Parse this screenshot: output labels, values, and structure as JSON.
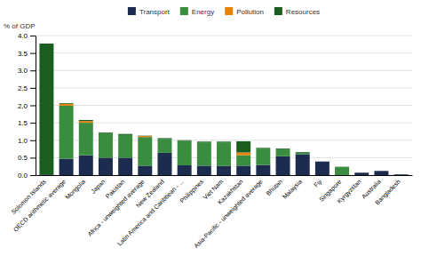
{
  "chart_data": {
    "type": "bar",
    "stacked": true,
    "y_label": "% of GDP",
    "categories": [
      "Solomon Islands",
      "OECD arithmetic average",
      "Mongolia",
      "Japan",
      "Pakistan",
      "Africa - unweighted average",
      "New Zealand",
      "Latin America and Caribbean - ...",
      "Philippines",
      "Viet Nam",
      "Kazakhstan",
      "Asia-Pacific - unweighted average",
      "Bhutan",
      "Malaysia",
      "Fiji",
      "Singapore",
      "Kyrgyzstan",
      "Australia",
      "Bangladesh"
    ],
    "series": [
      {
        "name": "Transport",
        "color": "#1c2c4e",
        "values": [
          0.02,
          0.47,
          0.57,
          0.5,
          0.5,
          0.27,
          0.64,
          0.28,
          0.27,
          0.26,
          0.27,
          0.29,
          0.54,
          0.6,
          0.39,
          0.0,
          0.07,
          0.12,
          0.02
        ]
      },
      {
        "name": "Energy",
        "color": "#3a8c3f",
        "values": [
          0.0,
          1.52,
          0.93,
          0.7,
          0.65,
          0.82,
          0.4,
          0.7,
          0.67,
          0.68,
          0.3,
          0.47,
          0.2,
          0.04,
          0.0,
          0.24,
          0.0,
          0.0,
          0.0
        ]
      },
      {
        "name": "Pollution",
        "color": "#e8820a",
        "values": [
          0.0,
          0.05,
          0.05,
          0.0,
          0.0,
          0.03,
          0.0,
          0.0,
          0.0,
          0.0,
          0.08,
          0.0,
          0.0,
          0.0,
          0.0,
          0.0,
          0.0,
          0.0,
          0.0
        ]
      },
      {
        "name": "Resources",
        "color": "#1a5e20",
        "values": [
          3.75,
          0.02,
          0.03,
          0.02,
          0.03,
          0.01,
          0.02,
          0.02,
          0.02,
          0.02,
          0.32,
          0.02,
          0.02,
          0.02,
          0.0,
          0.0,
          0.0,
          0.0,
          0.0
        ]
      }
    ],
    "ylim": [
      0,
      4.0
    ],
    "yticks": [
      {
        "value": 0.0,
        "label": "0.0"
      },
      0.5,
      {
        "value": 1.0,
        "label": "1.0"
      },
      1.5,
      {
        "value": 2.0,
        "label": "2.0"
      },
      2.5,
      {
        "value": 3.0,
        "label": "3.0"
      },
      3.5,
      {
        "value": 4.0,
        "label": "4.0"
      }
    ],
    "grid": true,
    "legend": "top"
  }
}
